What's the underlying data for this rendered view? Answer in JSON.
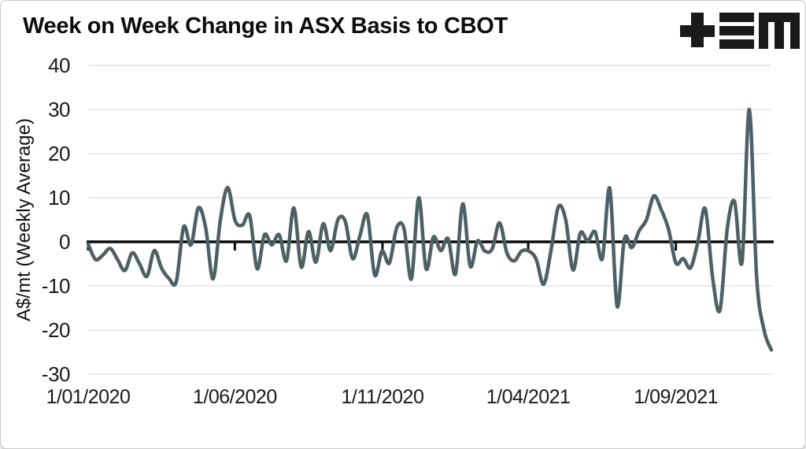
{
  "header": {
    "title": "Week on Week Change in ASX Basis to CBOT"
  },
  "logo": {
    "name": "tem-logo",
    "color": "#1a1a1a"
  },
  "chart_data": {
    "type": "line",
    "title": "Week on Week Change in ASX Basis to CBOT",
    "xlabel": "",
    "ylabel": "A$/mt (Weekly Average)",
    "ylim": [
      -30,
      40
    ],
    "y_ticks": [
      40,
      30,
      20,
      10,
      0,
      -10,
      -20,
      -30
    ],
    "x_ticks": [
      {
        "label": "1/01/2020",
        "pos": 0.0
      },
      {
        "label": "1/06/2020",
        "pos": 0.2147
      },
      {
        "label": "1/11/2020",
        "pos": 0.4308
      },
      {
        "label": "1/04/2021",
        "pos": 0.6441
      },
      {
        "label": "1/09/2021",
        "pos": 0.8602
      }
    ],
    "grid": true,
    "zero_axis": true,
    "legend_position": "none",
    "frequency": "weekly",
    "series": [
      {
        "color": "#4d6164",
        "values": [
          -0.5,
          -4,
          -3,
          -1.5,
          -4,
          -6.5,
          -2.5,
          -5,
          -7.8,
          -2,
          -6,
          -8.3,
          -9,
          3.4,
          -0.7,
          7.7,
          3.2,
          -8.4,
          5,
          12.3,
          4.8,
          3.8,
          5.9,
          -6.1,
          1.6,
          -0.7,
          1.6,
          -4.3,
          7.7,
          -5.7,
          2.3,
          -4.6,
          4.1,
          -2,
          5,
          4.6,
          -3.8,
          1.4,
          6.1,
          -7.5,
          -2.1,
          -4.8,
          3.2,
          3.0,
          -8.4,
          10,
          -6.1,
          1.1,
          -2,
          0.7,
          -7.3,
          8.6,
          -5.5,
          0.2,
          -2.1,
          -1.6,
          4.3,
          -2.5,
          -4.3,
          -2.1,
          -2.1,
          -4,
          -9.6,
          -2,
          7.9,
          5,
          -6.4,
          2,
          0.2,
          2.3,
          -3.8,
          12.1,
          -14.6,
          0.7,
          -1.3,
          2.5,
          5,
          10.4,
          7.3,
          2.9,
          -4.8,
          -3.8,
          -5.9,
          0,
          7.5,
          -8,
          -15.5,
          3,
          9.1,
          -4.6,
          30,
          -8,
          -20,
          -24.5
        ]
      }
    ]
  },
  "colors": {
    "grid": "#e3e3e3",
    "zero_line": "#0a0a0a",
    "series": "#4d6164",
    "text": "#1a1a1a",
    "border": "#c9c9c9"
  }
}
